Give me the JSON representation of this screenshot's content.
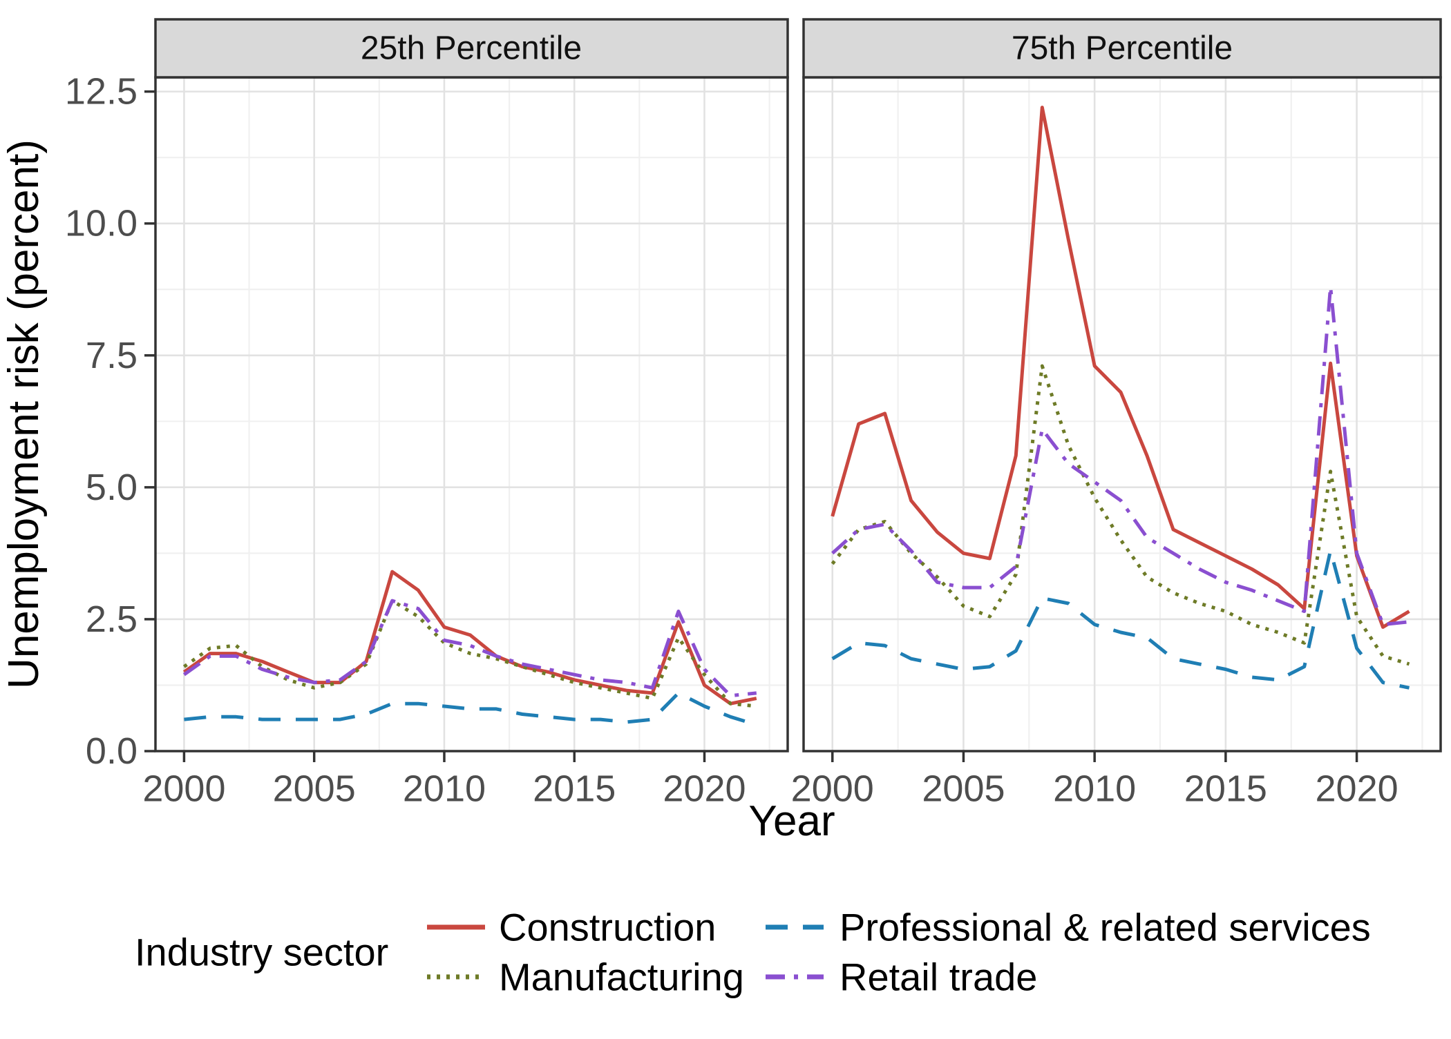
{
  "figure": {
    "y_axis_title": "Unemployment risk (percent)",
    "x_axis_title": "Year"
  },
  "legend": {
    "title": "Industry sector",
    "entries": [
      {
        "label": "Construction",
        "color": "#C9473F",
        "linetype": "solid"
      },
      {
        "label": "Manufacturing",
        "color": "#6E7B27",
        "linetype": "dotted"
      },
      {
        "label": "Professional & related services",
        "color": "#1F7EB4",
        "linetype": "dashed"
      },
      {
        "label": "Retail trade",
        "color": "#8A4FD0",
        "linetype": "dashdot"
      }
    ],
    "position": "bottom"
  },
  "colors": {
    "grid_major": "#e2e2e2",
    "grid_minor": "#f0f0f0",
    "panel_border": "#333333",
    "strip_background": "#d9d9d9",
    "tick_text": "#4d4d4d"
  },
  "chart_data": [
    {
      "type": "line",
      "facet": "25th Percentile",
      "x": [
        2000,
        2001,
        2002,
        2003,
        2004,
        2005,
        2006,
        2007,
        2008,
        2009,
        2010,
        2011,
        2012,
        2013,
        2014,
        2015,
        2016,
        2017,
        2018,
        2019,
        2020,
        2021,
        2022
      ],
      "series": [
        {
          "name": "Construction",
          "color": "#C9473F",
          "linetype": "solid",
          "values": [
            1.5,
            1.85,
            1.85,
            1.7,
            1.5,
            1.3,
            1.3,
            1.7,
            3.4,
            3.05,
            2.35,
            2.2,
            1.8,
            1.6,
            1.5,
            1.35,
            1.25,
            1.15,
            1.1,
            2.45,
            1.25,
            0.9,
            1.0
          ]
        },
        {
          "name": "Manufacturing",
          "color": "#6E7B27",
          "linetype": "dotted",
          "values": [
            1.6,
            1.95,
            2.0,
            1.6,
            1.35,
            1.2,
            1.3,
            1.65,
            2.85,
            2.55,
            2.05,
            1.85,
            1.75,
            1.6,
            1.45,
            1.3,
            1.2,
            1.1,
            1.0,
            2.15,
            1.45,
            0.9,
            0.85
          ]
        },
        {
          "name": "Professional & related services",
          "color": "#1F7EB4",
          "linetype": "dashed",
          "values": [
            0.6,
            0.65,
            0.65,
            0.6,
            0.6,
            0.6,
            0.6,
            0.7,
            0.9,
            0.9,
            0.85,
            0.8,
            0.8,
            0.7,
            0.65,
            0.6,
            0.6,
            0.55,
            0.6,
            1.1,
            0.85,
            0.65,
            0.5
          ]
        },
        {
          "name": "Retail trade",
          "color": "#8A4FD0",
          "linetype": "dashdot",
          "values": [
            1.45,
            1.8,
            1.8,
            1.55,
            1.4,
            1.3,
            1.35,
            1.7,
            2.85,
            2.7,
            2.1,
            2.0,
            1.8,
            1.65,
            1.55,
            1.45,
            1.35,
            1.3,
            1.2,
            2.65,
            1.55,
            1.05,
            1.1
          ]
        }
      ],
      "xlabel": "Year",
      "ylabel": "Unemployment risk (percent)",
      "ylim": [
        0,
        12.77
      ],
      "xlim": [
        1998.9,
        2023.2
      ],
      "yticks": [
        0,
        2.5,
        5,
        7.5,
        10,
        12.5
      ],
      "ytick_labels": [
        "0.0",
        "2.5",
        "5.0",
        "7.5",
        "10.0",
        "12.5"
      ],
      "xticks": [
        2000,
        2005,
        2010,
        2015,
        2020
      ],
      "xtick_labels": [
        "2000",
        "2005",
        "2010",
        "2015",
        "2020"
      ],
      "yticks_minor": [
        1.25,
        3.75,
        6.25,
        8.75,
        11.25
      ],
      "xticks_minor": [
        2002.5,
        2007.5,
        2012.5,
        2017.5,
        2022.5
      ],
      "grid": true
    },
    {
      "type": "line",
      "facet": "75th Percentile",
      "x": [
        2000,
        2001,
        2002,
        2003,
        2004,
        2005,
        2006,
        2007,
        2008,
        2009,
        2010,
        2011,
        2012,
        2013,
        2014,
        2015,
        2016,
        2017,
        2018,
        2019,
        2020,
        2021,
        2022
      ],
      "series": [
        {
          "name": "Construction",
          "color": "#C9473F",
          "linetype": "solid",
          "values": [
            4.45,
            6.2,
            6.4,
            4.75,
            4.15,
            3.75,
            3.65,
            5.6,
            12.2,
            9.7,
            7.3,
            6.8,
            5.6,
            4.2,
            3.95,
            3.7,
            3.45,
            3.15,
            2.7,
            7.35,
            3.7,
            2.35,
            2.65
          ]
        },
        {
          "name": "Manufacturing",
          "color": "#6E7B27",
          "linetype": "dotted",
          "values": [
            3.55,
            4.2,
            4.35,
            3.75,
            3.3,
            2.75,
            2.55,
            3.35,
            7.3,
            5.8,
            4.8,
            4.0,
            3.3,
            3.0,
            2.8,
            2.65,
            2.4,
            2.25,
            2.05,
            5.3,
            2.55,
            1.8,
            1.65
          ]
        },
        {
          "name": "Professional & related services",
          "color": "#1F7EB4",
          "linetype": "dashed",
          "values": [
            1.75,
            2.05,
            2.0,
            1.75,
            1.65,
            1.55,
            1.6,
            1.9,
            2.9,
            2.8,
            2.4,
            2.25,
            2.15,
            1.75,
            1.65,
            1.55,
            1.4,
            1.35,
            1.6,
            3.8,
            1.95,
            1.3,
            1.2
          ]
        },
        {
          "name": "Retail trade",
          "color": "#8A4FD0",
          "linetype": "dashdot",
          "values": [
            3.75,
            4.2,
            4.3,
            3.8,
            3.2,
            3.1,
            3.1,
            3.5,
            6.1,
            5.45,
            5.1,
            4.75,
            4.05,
            3.75,
            3.45,
            3.2,
            3.05,
            2.85,
            2.65,
            8.8,
            3.75,
            2.4,
            2.45
          ]
        }
      ],
      "xlabel": "Year",
      "ylabel": "Unemployment risk (percent)",
      "ylim": [
        0,
        12.77
      ],
      "xlim": [
        1998.9,
        2023.2
      ],
      "yticks": [
        0,
        2.5,
        5,
        7.5,
        10,
        12.5
      ],
      "ytick_labels": [
        "0.0",
        "2.5",
        "5.0",
        "7.5",
        "10.0",
        "12.5"
      ],
      "xticks": [
        2000,
        2005,
        2010,
        2015,
        2020
      ],
      "xtick_labels": [
        "2000",
        "2005",
        "2010",
        "2015",
        "2020"
      ],
      "yticks_minor": [
        1.25,
        3.75,
        6.25,
        8.75,
        11.25
      ],
      "xticks_minor": [
        2002.5,
        2007.5,
        2012.5,
        2017.5,
        2022.5
      ],
      "grid": true
    }
  ]
}
